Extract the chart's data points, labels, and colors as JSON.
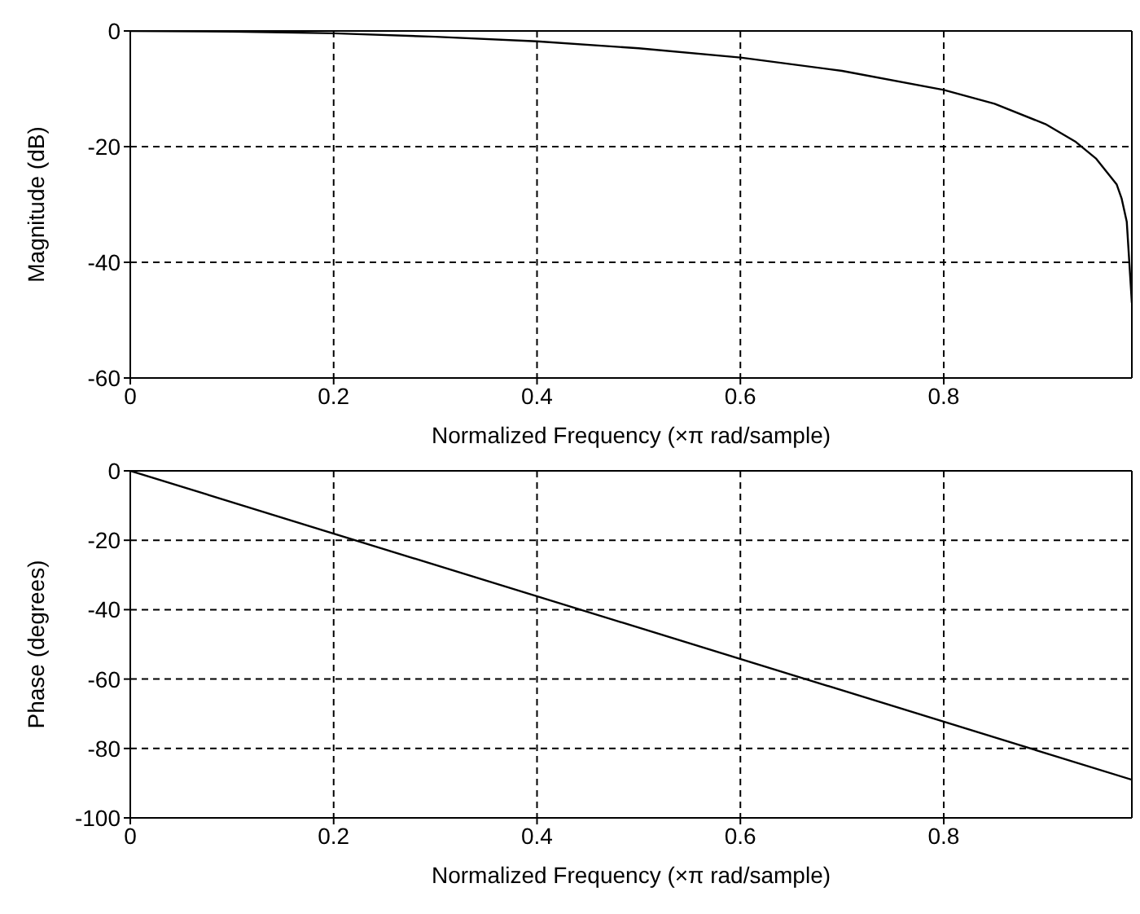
{
  "chart_data": [
    {
      "type": "line",
      "xlabel": "Normalized Frequency  (×π rad/sample)",
      "ylabel": "Magnitude (dB)",
      "xlim": [
        0,
        0.985
      ],
      "ylim": [
        -60,
        0
      ],
      "xticks": [
        0,
        0.2,
        0.4,
        0.6,
        0.8
      ],
      "yticks": [
        -60,
        -40,
        -20,
        0
      ],
      "grid": true,
      "legend": false,
      "series": [
        {
          "color": "#000000",
          "x": [
            0,
            0.1,
            0.2,
            0.3,
            0.4,
            0.5,
            0.6,
            0.7,
            0.8,
            0.85,
            0.9,
            0.93,
            0.95,
            0.97,
            0.975,
            0.98,
            0.985
          ],
          "values": [
            0,
            -0.1,
            -0.4,
            -1,
            -1.8,
            -3,
            -4.6,
            -6.9,
            -10.2,
            -12.6,
            -16.1,
            -19.2,
            -22.1,
            -26.5,
            -29,
            -33,
            -47
          ]
        }
      ]
    },
    {
      "type": "line",
      "xlabel": "Normalized Frequency  (×π rad/sample)",
      "ylabel": "Phase (degrees)",
      "xlim": [
        0,
        0.985
      ],
      "ylim": [
        -100,
        0
      ],
      "xticks": [
        0,
        0.2,
        0.4,
        0.6,
        0.8
      ],
      "yticks": [
        -100,
        -80,
        -60,
        -40,
        -20,
        0
      ],
      "grid": true,
      "legend": false,
      "series": [
        {
          "color": "#000000",
          "x": [
            0,
            0.985
          ],
          "values": [
            0,
            -89
          ]
        }
      ]
    }
  ]
}
